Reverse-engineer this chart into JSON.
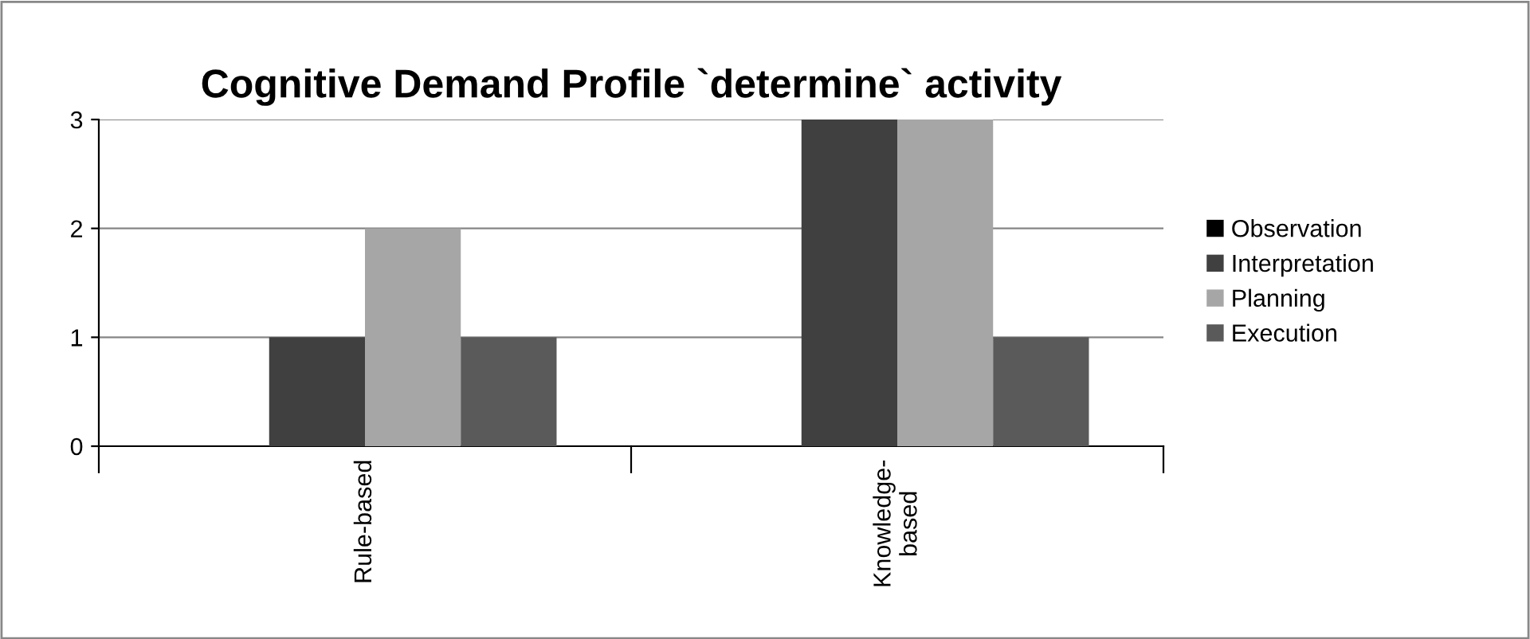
{
  "chart_data": {
    "type": "bar",
    "title": "Cognitive Demand Profile `determine` activity",
    "categories": [
      "Rule-based",
      "Knowledge-\nbased"
    ],
    "series": [
      {
        "name": "Observation",
        "color": "#000000",
        "values": [
          0,
          0
        ]
      },
      {
        "name": "Interpretation",
        "color": "#404040",
        "values": [
          1,
          3
        ]
      },
      {
        "name": "Planning",
        "color": "#a6a6a6",
        "values": [
          2,
          3
        ]
      },
      {
        "name": "Execution",
        "color": "#5a5a5a",
        "values": [
          1,
          1
        ]
      }
    ],
    "ylim": [
      0,
      3
    ],
    "yticks": [
      0,
      1,
      2,
      3
    ],
    "grid": "y",
    "legend": "right"
  }
}
